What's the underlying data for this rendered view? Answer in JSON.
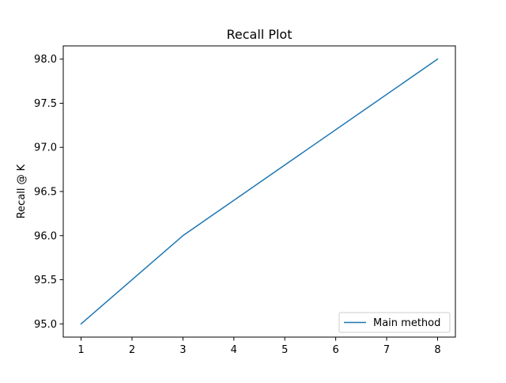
{
  "chart_data": {
    "type": "line",
    "title": "Recall Plot",
    "xlabel": "",
    "ylabel": "Recall @ K",
    "xlim": [
      0.65,
      8.35
    ],
    "ylim": [
      94.85,
      98.15
    ],
    "xticks": [
      1,
      2,
      3,
      4,
      5,
      6,
      7,
      8
    ],
    "yticks": [
      95.0,
      95.5,
      96.0,
      96.5,
      97.0,
      97.5,
      98.0
    ],
    "grid": false,
    "legend_position": "lower-right",
    "series": [
      {
        "name": "Main method",
        "color": "#1f77b4",
        "x": [
          1,
          3,
          8
        ],
        "y": [
          95.0,
          96.0,
          98.0
        ]
      }
    ]
  }
}
